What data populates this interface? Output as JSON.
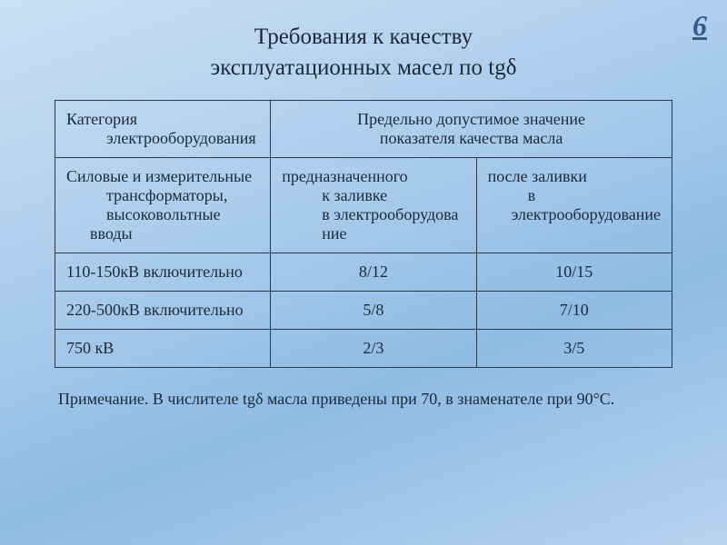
{
  "pageNumber": "6",
  "title_line1": "Требования к качеству",
  "title_line2": "эксплуатационных масел по tgδ",
  "header": {
    "col1_line1": "Категория",
    "col1_line2": "электрооборудования",
    "col2_line1": "Предельно допустимое значение",
    "col2_line2": "показателя качества масла"
  },
  "subheader": {
    "left_line1": "Силовые и измерительные",
    "left_line2": "трансформаторы,",
    "left_line3": "высоковольтные вводы",
    "mid_line1": "предназначенного",
    "mid_line2": "к заливке",
    "mid_line3": "в электрооборудова",
    "mid_line4": "ние",
    "right_line1": "после заливки",
    "right_line2": "в электрооборудование"
  },
  "rows": [
    {
      "label": "110-150кВ включительно",
      "v1": "8/12",
      "v2": "10/15"
    },
    {
      "label": "220-500кВ включительно",
      "v1": "5/8",
      "v2": "7/10"
    },
    {
      "label": "750 кВ",
      "v1": "2/3",
      "v2": "3/5"
    }
  ],
  "footnote": "Примечание. В числителе tgδ масла приведены при 70, в знаменателе при 90°С.",
  "style": {
    "background_gradient_stops": [
      "#cce0f4",
      "#a4c8ea",
      "#8fbbe3",
      "#b7d3ef"
    ],
    "text_color": "#1a2a3a",
    "border_color": "#2a3a4a",
    "page_number_color": "#355a8a",
    "title_fontsize_pt": 19,
    "body_fontsize_pt": 14,
    "pagenum_fontsize_pt": 24,
    "col_widths_pct": [
      35,
      34,
      31
    ]
  }
}
